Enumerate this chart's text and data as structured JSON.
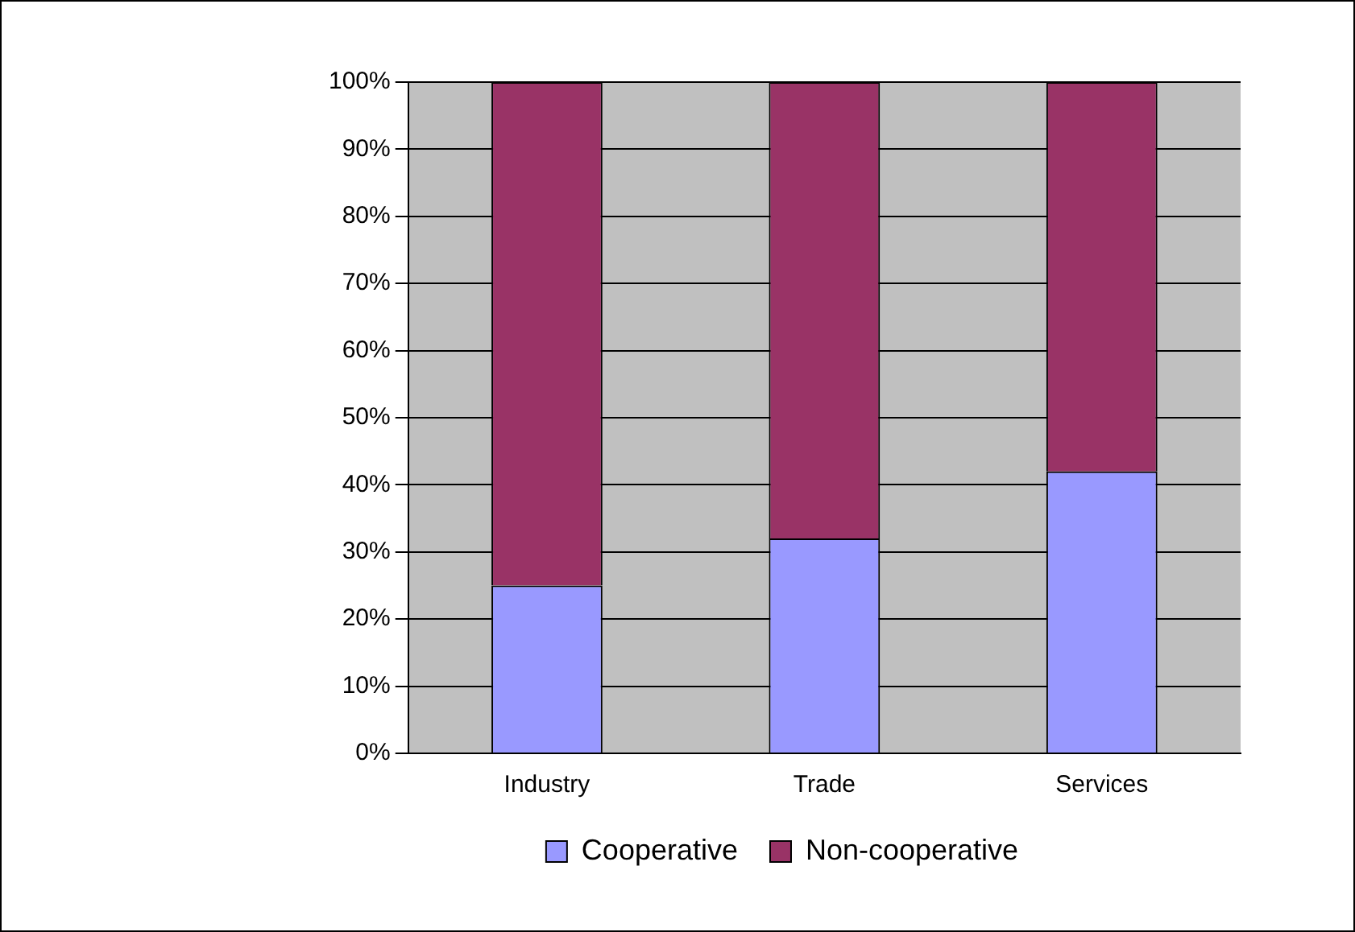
{
  "chart_data": {
    "type": "bar",
    "stacked": true,
    "categories": [
      "Industry",
      "Trade",
      "Services"
    ],
    "series": [
      {
        "name": "Cooperative",
        "color": "#9999ff",
        "values": [
          25,
          32,
          42
        ]
      },
      {
        "name": "Non-cooperative",
        "color": "#993366",
        "values": [
          75,
          68,
          58
        ]
      }
    ],
    "ylim": [
      0,
      100
    ],
    "yticks": [
      {
        "value": 0,
        "label": "0%"
      },
      {
        "value": 10,
        "label": "10%"
      },
      {
        "value": 20,
        "label": "20%"
      },
      {
        "value": 30,
        "label": "30%"
      },
      {
        "value": 40,
        "label": "40%"
      },
      {
        "value": 50,
        "label": "50%"
      },
      {
        "value": 60,
        "label": "60%"
      },
      {
        "value": 70,
        "label": "70%"
      },
      {
        "value": 80,
        "label": "80%"
      },
      {
        "value": 90,
        "label": "90%"
      },
      {
        "value": 100,
        "label": "100%"
      }
    ],
    "grid": "y",
    "legend": "bottom"
  }
}
